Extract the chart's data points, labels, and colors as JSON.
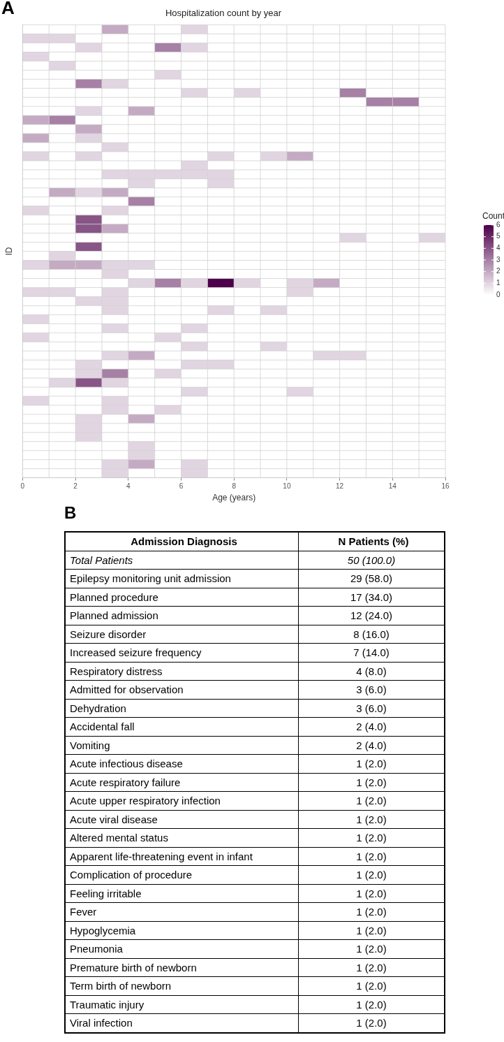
{
  "chart_data": [
    {
      "type": "heatmap",
      "title": "Hospitalization count by year",
      "xlabel": "Age (years)",
      "ylabel": "ID",
      "clabel": "Count",
      "annotations": [
        "A"
      ],
      "x": [
        0.5,
        1.5,
        2.5,
        3.5,
        4.5,
        5.5,
        6.5,
        7.5,
        8.5,
        9.5,
        10.5,
        11.5,
        12.5,
        13.5,
        14.5,
        15.5
      ],
      "xlim": [
        0,
        16
      ],
      "xticks": [
        0,
        2,
        4,
        6,
        8,
        10,
        12,
        14,
        16
      ],
      "tick_labels": "x",
      "y_categories": [
        null,
        null,
        null,
        null,
        null,
        null,
        null,
        null,
        null,
        null,
        null,
        null,
        null,
        null,
        null,
        null,
        null,
        null,
        null,
        null,
        null,
        null,
        null,
        null,
        null,
        null,
        null,
        null,
        null,
        null,
        null,
        null,
        null,
        null,
        null,
        null,
        null,
        null,
        null,
        null,
        null,
        null,
        null,
        null,
        null,
        null,
        null,
        null,
        null,
        null
      ],
      "color": "#4d004b",
      "grid": true,
      "clim": [
        0,
        6
      ],
      "cticks": [
        0,
        1,
        2,
        3,
        4,
        5,
        6
      ],
      "cells": [
        [
          0,
          0,
          0,
          2,
          0,
          0,
          1,
          0,
          0,
          0,
          0,
          0,
          0,
          0,
          0,
          0
        ],
        [
          1,
          1,
          0,
          0,
          0,
          0,
          0,
          0,
          0,
          0,
          0,
          0,
          0,
          0,
          0,
          0
        ],
        [
          0,
          0,
          1,
          0,
          0,
          3,
          1,
          0,
          0,
          0,
          0,
          0,
          0,
          0,
          0,
          0
        ],
        [
          1,
          0,
          0,
          0,
          0,
          0,
          0,
          0,
          0,
          0,
          0,
          0,
          0,
          0,
          0,
          0
        ],
        [
          0,
          1,
          0,
          0,
          0,
          0,
          0,
          0,
          0,
          0,
          0,
          0,
          0,
          0,
          0,
          0
        ],
        [
          0,
          0,
          0,
          0,
          0,
          1,
          0,
          0,
          0,
          0,
          0,
          0,
          0,
          0,
          0,
          0
        ],
        [
          0,
          0,
          3,
          1,
          0,
          0,
          0,
          0,
          0,
          0,
          0,
          0,
          0,
          0,
          0,
          0
        ],
        [
          0,
          0,
          0,
          0,
          0,
          0,
          1,
          0,
          1,
          0,
          0,
          0,
          3,
          0,
          0,
          0
        ],
        [
          0,
          0,
          0,
          0,
          0,
          0,
          0,
          0,
          0,
          0,
          0,
          0,
          0,
          3,
          3,
          0
        ],
        [
          0,
          0,
          1,
          0,
          2,
          0,
          0,
          0,
          0,
          0,
          0,
          0,
          0,
          0,
          0,
          0
        ],
        [
          2,
          3,
          0,
          0,
          0,
          0,
          0,
          0,
          0,
          0,
          0,
          0,
          0,
          0,
          0,
          0
        ],
        [
          0,
          0,
          2,
          0,
          0,
          0,
          0,
          0,
          0,
          0,
          0,
          0,
          0,
          0,
          0,
          0
        ],
        [
          2,
          0,
          1,
          0,
          0,
          0,
          0,
          0,
          0,
          0,
          0,
          0,
          0,
          0,
          0,
          0
        ],
        [
          0,
          0,
          0,
          1,
          0,
          0,
          0,
          0,
          0,
          0,
          0,
          0,
          0,
          0,
          0,
          0
        ],
        [
          1,
          0,
          1,
          0,
          0,
          0,
          0,
          1,
          0,
          1,
          2,
          0,
          0,
          0,
          0,
          0
        ],
        [
          0,
          0,
          0,
          0,
          0,
          0,
          1,
          0,
          0,
          0,
          0,
          0,
          0,
          0,
          0,
          0
        ],
        [
          0,
          0,
          0,
          1,
          1,
          1,
          1,
          1,
          0,
          0,
          0,
          0,
          0,
          0,
          0,
          0
        ],
        [
          0,
          0,
          0,
          0,
          1,
          0,
          0,
          1,
          0,
          0,
          0,
          0,
          0,
          0,
          0,
          0
        ],
        [
          0,
          2,
          1,
          2,
          0,
          0,
          0,
          0,
          0,
          0,
          0,
          0,
          0,
          0,
          0,
          0
        ],
        [
          0,
          0,
          0,
          0,
          3,
          0,
          0,
          0,
          0,
          0,
          0,
          0,
          0,
          0,
          0,
          0
        ],
        [
          1,
          0,
          0,
          1,
          0,
          0,
          0,
          0,
          0,
          0,
          0,
          0,
          0,
          0,
          0,
          0
        ],
        [
          0,
          0,
          4,
          0,
          0,
          0,
          0,
          0,
          0,
          0,
          0,
          0,
          0,
          0,
          0,
          0
        ],
        [
          0,
          0,
          4,
          2,
          0,
          0,
          0,
          0,
          0,
          0,
          0,
          0,
          0,
          0,
          0,
          0
        ],
        [
          0,
          0,
          0,
          0,
          0,
          0,
          0,
          0,
          0,
          0,
          0,
          0,
          1,
          0,
          0,
          1
        ],
        [
          0,
          0,
          4,
          0,
          0,
          0,
          0,
          0,
          0,
          0,
          0,
          0,
          0,
          0,
          0,
          0
        ],
        [
          0,
          1,
          0,
          0,
          0,
          0,
          0,
          0,
          0,
          0,
          0,
          0,
          0,
          0,
          0,
          0
        ],
        [
          1,
          2,
          2,
          1,
          1,
          0,
          0,
          0,
          0,
          0,
          0,
          0,
          0,
          0,
          0,
          0
        ],
        [
          0,
          0,
          0,
          1,
          0,
          0,
          0,
          0,
          0,
          0,
          0,
          0,
          0,
          0,
          0,
          0
        ],
        [
          0,
          0,
          0,
          0,
          1,
          3,
          1,
          6,
          1,
          0,
          1,
          2,
          0,
          0,
          0,
          0
        ],
        [
          1,
          1,
          0,
          1,
          0,
          0,
          0,
          0,
          0,
          0,
          1,
          0,
          0,
          0,
          0,
          0
        ],
        [
          0,
          0,
          1,
          1,
          0,
          0,
          0,
          0,
          0,
          0,
          0,
          0,
          0,
          0,
          0,
          0
        ],
        [
          0,
          0,
          0,
          1,
          0,
          0,
          0,
          1,
          0,
          1,
          0,
          0,
          0,
          0,
          0,
          0
        ],
        [
          1,
          0,
          0,
          0,
          0,
          0,
          0,
          0,
          0,
          0,
          0,
          0,
          0,
          0,
          0,
          0
        ],
        [
          0,
          0,
          0,
          1,
          0,
          0,
          1,
          0,
          0,
          0,
          0,
          0,
          0,
          0,
          0,
          0
        ],
        [
          1,
          0,
          0,
          0,
          0,
          1,
          0,
          0,
          0,
          0,
          0,
          0,
          0,
          0,
          0,
          0
        ],
        [
          0,
          0,
          0,
          0,
          0,
          0,
          1,
          0,
          0,
          1,
          0,
          0,
          0,
          0,
          0,
          0
        ],
        [
          0,
          0,
          0,
          1,
          2,
          0,
          0,
          0,
          0,
          0,
          0,
          1,
          1,
          0,
          0,
          0
        ],
        [
          0,
          0,
          1,
          0,
          0,
          0,
          1,
          1,
          0,
          0,
          0,
          0,
          0,
          0,
          0,
          0
        ],
        [
          0,
          0,
          1,
          3,
          0,
          1,
          0,
          0,
          0,
          0,
          0,
          0,
          0,
          0,
          0,
          0
        ],
        [
          0,
          1,
          4,
          1,
          0,
          0,
          0,
          0,
          0,
          0,
          0,
          0,
          0,
          0,
          0,
          0
        ],
        [
          0,
          0,
          0,
          0,
          0,
          0,
          1,
          0,
          0,
          0,
          1,
          0,
          0,
          0,
          0,
          0
        ],
        [
          1,
          0,
          0,
          1,
          0,
          0,
          0,
          0,
          0,
          0,
          0,
          0,
          0,
          0,
          0,
          0
        ],
        [
          0,
          0,
          0,
          1,
          0,
          1,
          0,
          0,
          0,
          0,
          0,
          0,
          0,
          0,
          0,
          0
        ],
        [
          0,
          0,
          1,
          0,
          2,
          0,
          0,
          0,
          0,
          0,
          0,
          0,
          0,
          0,
          0,
          0
        ],
        [
          0,
          0,
          1,
          0,
          0,
          0,
          0,
          0,
          0,
          0,
          0,
          0,
          0,
          0,
          0,
          0
        ],
        [
          0,
          0,
          1,
          0,
          0,
          0,
          0,
          0,
          0,
          0,
          0,
          0,
          0,
          0,
          0,
          0
        ],
        [
          0,
          0,
          0,
          0,
          1,
          0,
          0,
          0,
          0,
          0,
          0,
          0,
          0,
          0,
          0,
          0
        ],
        [
          0,
          0,
          0,
          0,
          1,
          0,
          0,
          0,
          0,
          0,
          0,
          0,
          0,
          0,
          0,
          0
        ],
        [
          0,
          0,
          0,
          1,
          2,
          0,
          1,
          0,
          0,
          0,
          0,
          0,
          0,
          0,
          0,
          0
        ],
        [
          0,
          0,
          0,
          1,
          0,
          0,
          1,
          0,
          0,
          0,
          0,
          0,
          0,
          0,
          0,
          0
        ]
      ]
    },
    {
      "type": "other",
      "annotations": [
        "B",
        "Admission Diagnosis",
        "N Patients (%)"
      ],
      "categories": [
        "Total Patients",
        "Epilepsy monitoring unit admission",
        "Planned procedure",
        "Planned admission",
        "Seizure disorder",
        "Increased seizure frequency",
        "Respiratory distress",
        "Admitted for observation",
        "Dehydration",
        "Accidental fall",
        "Vomiting",
        "Acute infectious disease",
        "Acute respiratory failure",
        "Acute upper respiratory infection",
        "Acute viral disease",
        "Altered mental status",
        "Apparent life-threatening event in infant",
        "Complication of procedure",
        "Feeling irritable",
        "Fever",
        "Hypoglycemia",
        "Pneumonia",
        "Premature birth of newborn",
        "Term birth of newborn",
        "Traumatic injury",
        "Viral infection"
      ],
      "value_labels": [
        "50 (100.0)",
        "29 (58.0)",
        "17 (34.0)",
        "12 (24.0)",
        "8 (16.0)",
        "7 (14.0)",
        "4 (8.0)",
        "3 (6.0)",
        "3 (6.0)",
        "2 (4.0)",
        "2 (4.0)",
        "1 (2.0)",
        "1 (2.0)",
        "1 (2.0)",
        "1 (2.0)",
        "1 (2.0)",
        "1 (2.0)",
        "1 (2.0)",
        "1 (2.0)",
        "1 (2.0)",
        "1 (2.0)",
        "1 (2.0)",
        "1 (2.0)",
        "1 (2.0)",
        "1 (2.0)",
        "1 (2.0)"
      ]
    }
  ]
}
